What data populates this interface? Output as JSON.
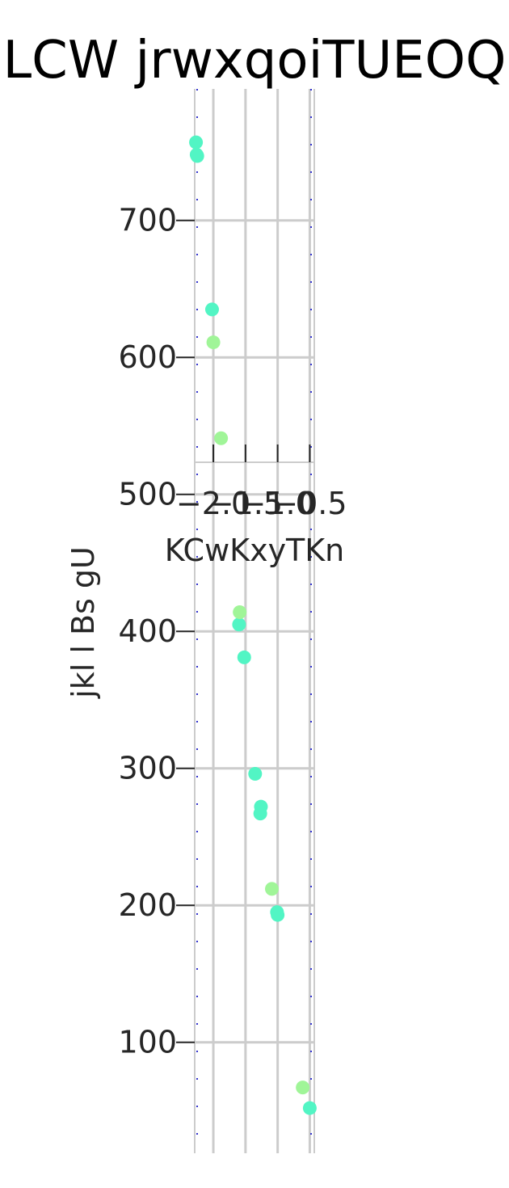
{
  "chart_data": {
    "type": "scatter",
    "title": "LCW jrwxqoiTUEOQ",
    "ylabel": "jkl l Bs gU",
    "xlabel": "KCwKxyTKn",
    "ylim": [
      19,
      796
    ],
    "yticks": [
      100,
      200,
      300,
      400,
      500,
      600,
      700
    ],
    "xlim": [
      -2.29,
      -0.43
    ],
    "xticks": [
      -2.0,
      -1.5,
      -1.0,
      -0.5
    ],
    "xtick_labels": [
      "−2.0",
      "−1.5",
      "−1.0",
      "−0.5"
    ],
    "grid": true,
    "series": [
      {
        "color": "#52f5c4",
        "points": [
          {
            "x": -2.27,
            "y": 757
          },
          {
            "x": -2.26,
            "y": 748
          },
          {
            "x": -2.25,
            "y": 747
          },
          {
            "x": -2.02,
            "y": 635
          },
          {
            "x": -1.6,
            "y": 405
          },
          {
            "x": -1.52,
            "y": 381
          },
          {
            "x": -1.35,
            "y": 296
          },
          {
            "x": -1.26,
            "y": 272
          },
          {
            "x": -1.27,
            "y": 267
          },
          {
            "x": -1.01,
            "y": 195
          },
          {
            "x": -1.0,
            "y": 193
          },
          {
            "x": -0.5,
            "y": 52
          }
        ]
      },
      {
        "color": "#a0f598",
        "points": [
          {
            "x": -2.0,
            "y": 611
          },
          {
            "x": -1.88,
            "y": 541
          },
          {
            "x": -1.59,
            "y": 414
          },
          {
            "x": -1.09,
            "y": 212
          },
          {
            "x": -0.61,
            "y": 67
          }
        ]
      }
    ],
    "inset_axis": {
      "xticks": [
        -2.0,
        -1.5,
        -1.0,
        -0.5
      ],
      "xtick_labels": [
        "−2.0",
        "−1.5",
        "−1.0",
        "−0.5"
      ],
      "xlabel": "KCwKxyTKn"
    },
    "frame_color": "#3333cc",
    "grid_color": "#cccccc"
  }
}
